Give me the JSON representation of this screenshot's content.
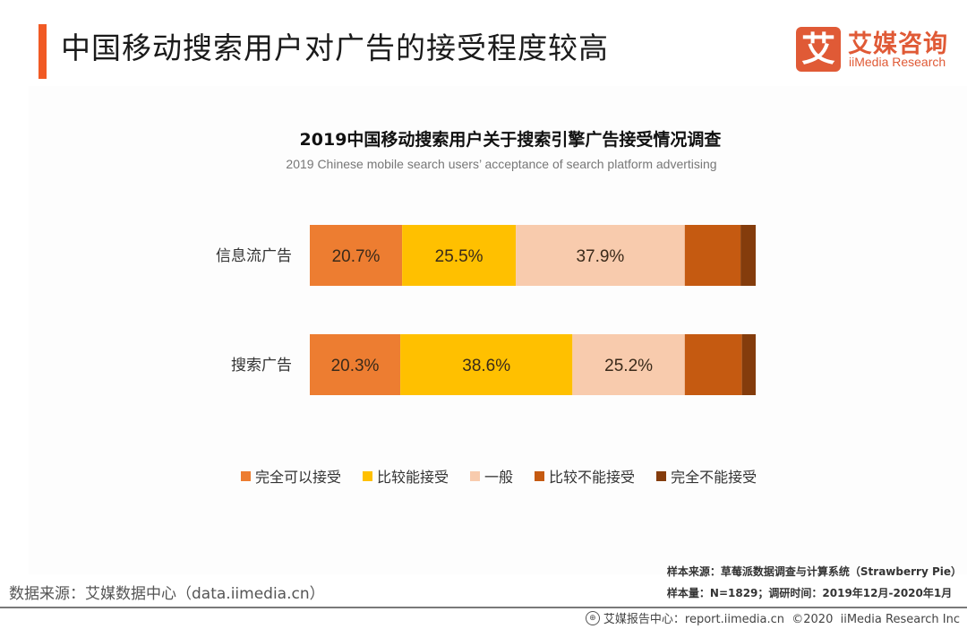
{
  "header": {
    "title": "中国移动搜索用户对广告的接受程度较高",
    "accent_color": "#f15a24"
  },
  "logo": {
    "mark": "艾",
    "name_cn": "艾媒咨询",
    "name_en": "iiMedia Research",
    "color": "#e05a36"
  },
  "chart_data": {
    "type": "bar",
    "orientation": "horizontal",
    "stacked": true,
    "normalized_percent": true,
    "title": "2019中国移动搜索用户关于搜索引擎广告接受情况调查",
    "subtitle": "2019 Chinese mobile search users’ acceptance of search platform advertising",
    "xlabel": "",
    "ylabel": "",
    "xlim": [
      0,
      100
    ],
    "grid": false,
    "legend_position": "bottom",
    "categories": [
      "信息流广告",
      "搜索广告"
    ],
    "series": [
      {
        "name": "完全可以接受",
        "color": "#ed7d31",
        "values": [
          20.7,
          20.3
        ],
        "labels": [
          "20.7%",
          "20.3%"
        ]
      },
      {
        "name": "比较能接受",
        "color": "#ffc000",
        "values": [
          25.5,
          38.6
        ],
        "labels": [
          "25.5%",
          "38.6%"
        ]
      },
      {
        "name": "一般",
        "color": "#f8cbad",
        "values": [
          37.9,
          25.2
        ],
        "labels": [
          "37.9%",
          "25.2%"
        ]
      },
      {
        "name": "比较不能接受",
        "color": "#c55a11",
        "values": [
          12.5,
          12.8
        ],
        "labels": [
          "",
          ""
        ]
      },
      {
        "name": "完全不能接受",
        "color": "#843c0c",
        "values": [
          3.4,
          3.1
        ],
        "labels": [
          "",
          ""
        ]
      }
    ]
  },
  "notes": {
    "sample_source": "样本来源：草莓派数据调查与计算系统（Strawberry Pie）",
    "sample_size": "样本量：N=1829；调研时间：2019年12月-2020年1月",
    "data_source": "数据来源：艾媒数据中心（data.iimedia.cn）"
  },
  "footer": {
    "icon": "globe-icon",
    "text": "艾媒报告中心：report.iimedia.cn  ©2020  iiMedia Research Inc"
  }
}
